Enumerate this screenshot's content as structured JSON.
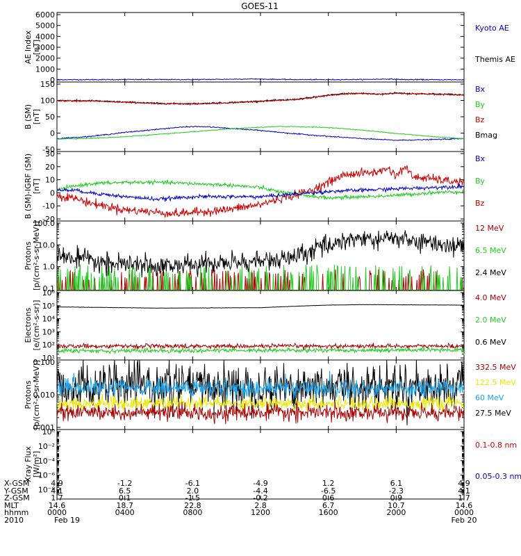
{
  "chart_data": {
    "title": "GOES-11",
    "type": "line",
    "x_range_hours": [
      0,
      24
    ],
    "panels": [
      {
        "id": "ae",
        "ylabel_lines": [
          "AE Index",
          "[nT]"
        ],
        "scale": "linear",
        "ylim": [
          0,
          6000
        ],
        "ticks": [
          {
            "v": 0,
            "label": "0"
          },
          {
            "v": 1000,
            "label": "1000"
          },
          {
            "v": 2000,
            "label": "2000"
          },
          {
            "v": 3000,
            "label": "3000"
          },
          {
            "v": 4000,
            "label": "4000"
          },
          {
            "v": 5000,
            "label": "5000"
          },
          {
            "v": 6000,
            "label": "6000"
          }
        ],
        "legend": [
          {
            "name": "Kyoto AE",
            "color": "#0000cc"
          },
          {
            "name": "Themis AE",
            "color": "#000000"
          }
        ],
        "series": [
          {
            "name": "Kyoto AE",
            "color": "#0000cc",
            "noise": 20,
            "x": [
              0,
              2,
              4,
              6,
              8,
              10,
              11.5,
              12,
              14,
              16,
              18,
              19.5,
              20.5,
              22,
              24
            ],
            "y": [
              20,
              25,
              30,
              35,
              30,
              60,
              90,
              70,
              30,
              25,
              40,
              80,
              30,
              20,
              15
            ]
          }
        ]
      },
      {
        "id": "bsm",
        "ylabel_lines": [
          "B (SM)",
          "[nT]"
        ],
        "scale": "linear",
        "ylim": [
          -50,
          150
        ],
        "ticks": [
          {
            "v": -50,
            "label": "-50"
          },
          {
            "v": 0,
            "label": "0"
          },
          {
            "v": 50,
            "label": "50"
          },
          {
            "v": 100,
            "label": "100"
          },
          {
            "v": 150,
            "label": "150"
          }
        ],
        "legend": [
          {
            "name": "Bx",
            "color": "#0000cc"
          },
          {
            "name": "By",
            "color": "#22cc22"
          },
          {
            "name": "Bz",
            "color": "#cc0000"
          },
          {
            "name": "Bmag",
            "color": "#000000"
          }
        ],
        "series": [
          {
            "name": "Bmag",
            "color": "#000000",
            "noise": 1.2,
            "x": [
              0,
              2,
              4,
              6,
              8,
              10,
              12,
              14,
              15,
              16,
              17,
              18,
              19,
              20,
              21,
              22,
              23,
              24
            ],
            "y": [
              100,
              99,
              95,
              91,
              90,
              93,
              98,
              103,
              109,
              116,
              121,
              122,
              119,
              123,
              121,
              120,
              119,
              117
            ]
          },
          {
            "name": "Bz",
            "color": "#cc0000",
            "noise": 1,
            "x": [
              0,
              2,
              4,
              6,
              8,
              10,
              12,
              14,
              15,
              16,
              17,
              18,
              19,
              20,
              21,
              22,
              23,
              24
            ],
            "y": [
              99,
              98,
              94,
              90,
              89,
              92,
              97,
              102,
              108,
              115,
              120,
              121,
              118,
              122,
              120,
              119,
              118,
              116
            ]
          },
          {
            "name": "Bx",
            "color": "#0000cc",
            "noise": 0.8,
            "x": [
              0,
              2,
              4,
              6,
              7,
              8,
              9,
              10,
              12,
              14,
              16,
              18,
              20,
              22,
              24
            ],
            "y": [
              -17,
              -10,
              2,
              12,
              17,
              20,
              19,
              15,
              8,
              -2,
              -10,
              -17,
              -22,
              -20,
              -17
            ]
          },
          {
            "name": "By",
            "color": "#22cc22",
            "noise": 0.6,
            "x": [
              0,
              2,
              4,
              6,
              8,
              10,
              12,
              13,
              14,
              16,
              18,
              20,
              22,
              24
            ],
            "y": [
              -18,
              -16,
              -11,
              -4,
              4,
              12,
              18,
              20,
              20,
              17,
              9,
              -1,
              -10,
              -17
            ]
          }
        ]
      },
      {
        "id": "bigrf",
        "ylabel_lines": [
          "B (SM)-IGRF (SM)",
          "[nT]"
        ],
        "scale": "linear",
        "ylim": [
          -20,
          30
        ],
        "ticks": [
          {
            "v": -20,
            "label": "-20"
          },
          {
            "v": -10,
            "label": "-10"
          },
          {
            "v": 0,
            "label": "0"
          },
          {
            "v": 10,
            "label": "10"
          },
          {
            "v": 20,
            "label": "20"
          },
          {
            "v": 30,
            "label": "30"
          }
        ],
        "legend": [
          {
            "name": "Bx",
            "color": "#0000cc"
          },
          {
            "name": "By",
            "color": "#22cc22"
          },
          {
            "name": "Bz",
            "color": "#cc0000"
          }
        ],
        "series": [
          {
            "name": "Bz",
            "color": "#cc0000",
            "noise": 1.6,
            "x": [
              0,
              1,
              2,
              4,
              6,
              7,
              8,
              10,
              12,
              13,
              14,
              15,
              16,
              17,
              18,
              19,
              19.5,
              20,
              20.5,
              21,
              22,
              23,
              24
            ],
            "y": [
              -2,
              -4,
              -8,
              -13,
              -15,
              -16,
              -15,
              -13,
              -9,
              -5,
              -2,
              2,
              8,
              14,
              15,
              16,
              19,
              13,
              20,
              12,
              11,
              9,
              8
            ]
          },
          {
            "name": "By",
            "color": "#22cc22",
            "noise": 0.7,
            "x": [
              0,
              1,
              2,
              4,
              6,
              8,
              10,
              12,
              13,
              14,
              16,
              18,
              20,
              22,
              24
            ],
            "y": [
              2,
              5,
              7,
              8,
              8,
              7,
              6,
              4,
              1,
              -1,
              -4,
              -3,
              -2,
              0,
              1
            ]
          },
          {
            "name": "Bx",
            "color": "#0000cc",
            "noise": 0.7,
            "x": [
              0,
              1,
              2,
              4,
              6,
              8,
              10,
              12,
              13,
              14,
              16,
              18,
              20,
              22,
              24
            ],
            "y": [
              2,
              2,
              0,
              -3,
              -5,
              -3,
              -3,
              -3,
              -2,
              -1,
              1,
              2,
              3,
              4,
              5
            ]
          }
        ]
      },
      {
        "id": "protons",
        "ylabel_lines": [
          "Protons",
          "[p/(cm²-s-sr-MeV)]"
        ],
        "scale": "log",
        "ylim": [
          0.1,
          100
        ],
        "ticks": [
          {
            "v": 0.1,
            "label": "0.1"
          },
          {
            "v": 1,
            "label": "1.0"
          },
          {
            "v": 10,
            "label": "10.0"
          },
          {
            "v": 100,
            "label": "100.0"
          }
        ],
        "legend": [
          {
            "name": "12 MeV",
            "color": "#aa0000"
          },
          {
            "name": "6.5 MeV",
            "color": "#22cc22"
          },
          {
            "name": "2.4 MeV",
            "color": "#000000"
          }
        ],
        "series": [
          {
            "name": "12 MeV",
            "color": "#aa0000",
            "noise": 0.5,
            "spiky": true,
            "x": [
              0,
              12,
              24
            ],
            "y": [
              0.12,
              0.12,
              0.12
            ]
          },
          {
            "name": "6.5 MeV",
            "color": "#22cc22",
            "noise": 0.6,
            "spiky": true,
            "x": [
              0,
              12,
              24
            ],
            "y": [
              0.14,
              0.14,
              0.14
            ]
          },
          {
            "name": "2.4 MeV",
            "color": "#000000",
            "noise": 0.22,
            "x": [
              0,
              1,
              2,
              3,
              4,
              6,
              8,
              10,
              12,
              13,
              14,
              15,
              16,
              17,
              18,
              19,
              20,
              21,
              22,
              23,
              24
            ],
            "y": [
              3,
              2.5,
              1.8,
              1.4,
              1.2,
              1.1,
              1.2,
              1.5,
              1.8,
              2.0,
              2.5,
              5,
              10,
              17,
              20,
              16,
              22,
              14,
              12,
              10,
              9
            ]
          }
        ]
      },
      {
        "id": "electrons",
        "ylabel_lines": [
          "Electrons",
          "[e/(cm²-s-sr)]"
        ],
        "scale": "log",
        "ylim": [
          10,
          1000000
        ],
        "ticks": [
          {
            "v": 10,
            "label": "10¹"
          },
          {
            "v": 100,
            "label": "10²"
          },
          {
            "v": 1000,
            "label": "10³"
          },
          {
            "v": 10000,
            "label": "10⁴"
          },
          {
            "v": 100000,
            "label": "10⁵"
          },
          {
            "v": 1000000,
            "label": "10⁶"
          }
        ],
        "legend": [
          {
            "name": "4.0 MeV",
            "color": "#aa0000"
          },
          {
            "name": "2.0 MeV",
            "color": "#22cc22"
          },
          {
            "name": "0.6 MeV",
            "color": "#000000"
          }
        ],
        "series": [
          {
            "name": "2.0 MeV",
            "color": "#22cc22",
            "noise": 0.08,
            "x": [
              0,
              24
            ],
            "y": [
              35,
              40
            ]
          },
          {
            "name": "4.0 MeV",
            "color": "#aa0000",
            "noise": 0.08,
            "x": [
              0,
              24
            ],
            "y": [
              80,
              80
            ]
          },
          {
            "name": "0.6 MeV",
            "color": "#000000",
            "noise": 0.005,
            "x": [
              0,
              6,
              12,
              16,
              18,
              24
            ],
            "y": [
              80000,
              65000,
              70000,
              110000,
              120000,
              110000
            ]
          }
        ]
      },
      {
        "id": "protons_hi",
        "ylabel_lines": [
          "Protons",
          "[p/(cm²-s-sr-MeV)]"
        ],
        "scale": "log",
        "ylim": [
          0.001,
          0.1
        ],
        "ticks": [
          {
            "v": 0.001,
            "label": "0.001"
          },
          {
            "v": 0.01,
            "label": "0.010"
          },
          {
            "v": 0.1,
            "label": "0.100"
          }
        ],
        "legend": [
          {
            "name": "332.5 MeV",
            "color": "#aa0000"
          },
          {
            "name": "122.5 MeV",
            "color": "#e8e800"
          },
          {
            "name": "60 MeV",
            "color": "#1aa3e8"
          },
          {
            "name": "27.5 MeV",
            "color": "#000000"
          }
        ],
        "series": [
          {
            "name": "27.5 MeV",
            "color": "#000000",
            "noise": 0.35,
            "x": [
              0,
              24
            ],
            "y": [
              0.018,
              0.018
            ]
          },
          {
            "name": "60 MeV",
            "color": "#1aa3e8",
            "noise": 0.14,
            "x": [
              0,
              24
            ],
            "y": [
              0.016,
              0.016
            ]
          },
          {
            "name": "122.5 MeV",
            "color": "#e8e800",
            "noise": 0.1,
            "x": [
              0,
              24
            ],
            "y": [
              0.0055,
              0.0055
            ]
          },
          {
            "name": "332.5 MeV",
            "color": "#aa0000",
            "noise": 0.12,
            "x": [
              0,
              24
            ],
            "y": [
              0.0028,
              0.0028
            ]
          }
        ]
      },
      {
        "id": "xray",
        "ylabel_lines": [
          "Xray Flux",
          "[W/m²]"
        ],
        "scale": "log",
        "ylim": [
          1e-09,
          1
        ],
        "ticks": [
          {
            "v": 1,
            "label": "10⁰"
          },
          {
            "v": 0.01,
            "label": "10⁻²"
          },
          {
            "v": 0.0001,
            "label": "10⁻⁴"
          },
          {
            "v": 1e-06,
            "label": "10⁻⁶"
          },
          {
            "v": 1e-08,
            "label": "10⁻⁸"
          }
        ],
        "legend": [
          {
            "name": "0.1-0.8 nm",
            "color": "#cc0000"
          },
          {
            "name": "0.05-0.3 nm",
            "color": "#0000cc"
          }
        ],
        "series": []
      }
    ],
    "x_ticks": [
      {
        "x": 0,
        "values": [
          "4.9",
          "4.1",
          "1.7",
          "14.6",
          "0000",
          "Feb 19"
        ]
      },
      {
        "x": 4,
        "values": [
          "-1.2",
          "6.5",
          "0.1",
          "18.7",
          "0400",
          ""
        ]
      },
      {
        "x": 8,
        "values": [
          "-6.1",
          "2.0",
          "-1.5",
          "22.8",
          "0800",
          ""
        ]
      },
      {
        "x": 12,
        "values": [
          "-4.9",
          "-4.4",
          "-0.2",
          "2.8",
          "1200",
          ""
        ]
      },
      {
        "x": 16,
        "values": [
          "1.2",
          "-6.5",
          "0.6",
          "6.7",
          "1600",
          ""
        ]
      },
      {
        "x": 20,
        "values": [
          "6.1",
          "-2.3",
          "0.9",
          "10.7",
          "2000",
          ""
        ]
      },
      {
        "x": 24,
        "values": [
          "4.9",
          "4.1",
          "1.7",
          "14.6",
          "0000",
          "Feb 20"
        ]
      }
    ],
    "row_labels": [
      "X-GSM",
      "Y-GSM",
      "Z-GSM",
      "MLT",
      "hhmm",
      "2010"
    ]
  }
}
